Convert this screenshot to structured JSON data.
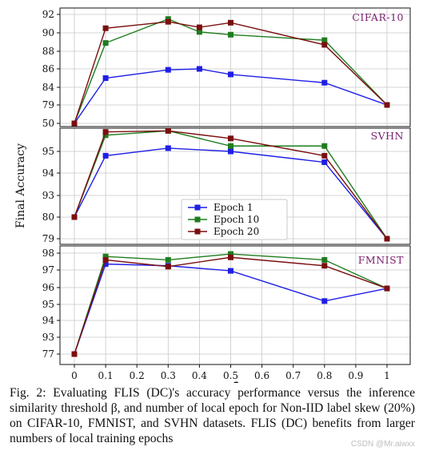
{
  "chart_data": {
    "type": "line",
    "xlabel": "β",
    "ylabel": "Final Accuracy",
    "x": [
      0,
      0.1,
      0.3,
      0.4,
      0.5,
      0.8,
      1
    ],
    "xticks": [
      0,
      0.1,
      0.2,
      0.3,
      0.4,
      0.5,
      0.6,
      0.7,
      0.8,
      0.9,
      1
    ],
    "xtick_labels": [
      "0",
      "0.1",
      "0.2",
      "0.3",
      "0.4",
      "0.5",
      "0.6",
      "0.7",
      "0.8",
      "0.9",
      "1"
    ],
    "grid": true,
    "legend_placement": "lower-center of middle panel",
    "colors": {
      "Epoch 1": "#1f1fe6",
      "Epoch 10": "#1e7d1e",
      "Epoch 20": "#7a0f0f"
    },
    "panels": [
      {
        "title": "CIFAR-10",
        "yticks": [
          50,
          79,
          84,
          86,
          88,
          90,
          92
        ],
        "series": [
          {
            "name": "Epoch 1",
            "values": [
              50,
              85.0,
              85.9,
              86.0,
              85.4,
              84.5,
              79
            ]
          },
          {
            "name": "Epoch 10",
            "values": [
              50,
              88.9,
              91.5,
              90.1,
              89.8,
              89.2,
              79
            ]
          },
          {
            "name": "Epoch 20",
            "values": [
              50,
              90.5,
              91.2,
              90.6,
              91.1,
              88.7,
              79
            ]
          }
        ]
      },
      {
        "title": "SVHN",
        "yticks": [
          79,
          80,
          93,
          94,
          95
        ],
        "series": [
          {
            "name": "Epoch 1",
            "values": [
              80,
              94.8,
              95.15,
              95.0,
              94.5,
              79
            ]
          },
          {
            "name": "Epoch 10",
            "values": [
              80,
              95.75,
              95.95,
              95.25,
              95.25,
              79
            ]
          },
          {
            "name": "Epoch 20",
            "values": [
              80,
              95.9,
              95.95,
              95.6,
              94.8,
              79
            ]
          }
        ],
        "x": [
          0,
          0.1,
          0.3,
          0.5,
          0.8,
          1
        ]
      },
      {
        "title": "FMNIST",
        "yticks": [
          77,
          93,
          94,
          95,
          96,
          97,
          98
        ],
        "series": [
          {
            "name": "Epoch 1",
            "values": [
              77,
              97.35,
              97.25,
              96.95,
              95.2,
              95.95
            ]
          },
          {
            "name": "Epoch 10",
            "values": [
              77,
              97.8,
              97.6,
              97.95,
              97.6,
              95.95
            ]
          },
          {
            "name": "Epoch 20",
            "values": [
              77,
              97.6,
              97.2,
              97.75,
              97.25,
              95.95
            ]
          }
        ],
        "x": [
          0,
          0.1,
          0.3,
          0.5,
          0.8,
          1
        ]
      }
    ]
  },
  "caption": "Fig. 2: Evaluating FLIS (DC)'s accuracy performance versus the inference similarity threshold β, and number of local epoch for Non-IID label skew (20%) on CIFAR-10, FMNIST, and SVHN datasets. FLIS (DC) benefits from larger numbers of local training epochs",
  "watermark": "CSDN @Mr.aiwxx"
}
